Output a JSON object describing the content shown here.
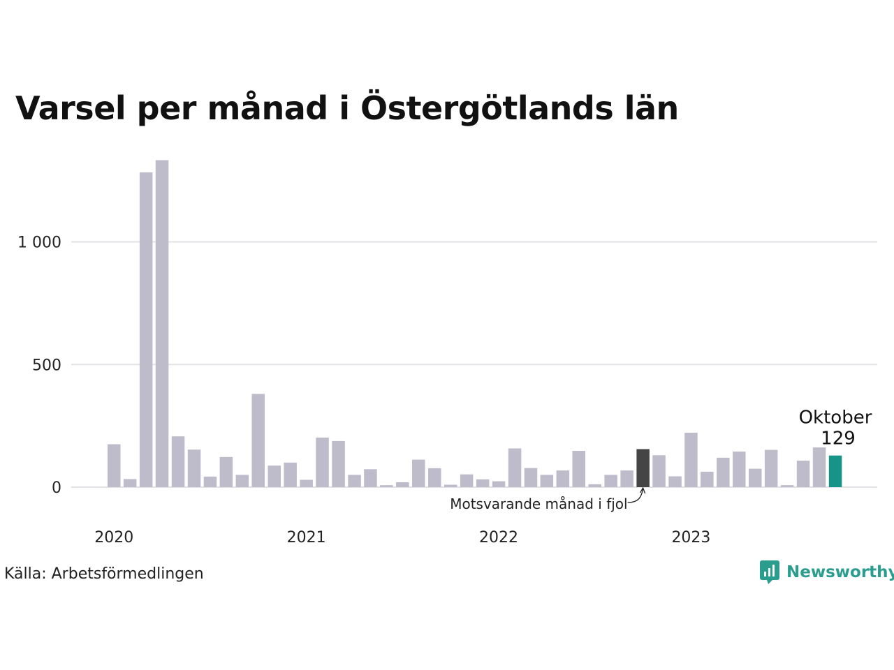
{
  "title": "Varsel per månad i Östergötlands län",
  "source": "Källa: Arbetsförmedlingen",
  "brand": "Newsworthy",
  "colors": {
    "default": "#bebbcb",
    "previous_year": "#454545",
    "current": "#179488",
    "grid": "#e2e2e6",
    "brand": "#2a9d8f"
  },
  "chart_data": {
    "type": "bar",
    "ylim": [
      0,
      1340
    ],
    "y_ticks": [
      {
        "value": 0,
        "label": "0"
      },
      {
        "value": 500,
        "label": "500"
      },
      {
        "value": 1000,
        "label": "1 000"
      }
    ],
    "x_year_labels": [
      {
        "index": 0,
        "label": "2020"
      },
      {
        "index": 12,
        "label": "2021"
      },
      {
        "index": 24,
        "label": "2022"
      },
      {
        "index": 36,
        "label": "2023"
      }
    ],
    "values": [
      175,
      33,
      1283,
      1333,
      207,
      153,
      43,
      123,
      50,
      380,
      88,
      100,
      30,
      202,
      188,
      50,
      73,
      8,
      20,
      112,
      77,
      10,
      52,
      32,
      24,
      158,
      78,
      50,
      68,
      148,
      12,
      50,
      68,
      155,
      130,
      44,
      222,
      63,
      120,
      145,
      75,
      152,
      8,
      108,
      162,
      129
    ],
    "highlight_previous_index": 33,
    "highlight_current_index": 45,
    "current_label": {
      "month": "Oktober",
      "value": "129"
    },
    "previous_annotation": "Motsvarande månad i fjol"
  }
}
